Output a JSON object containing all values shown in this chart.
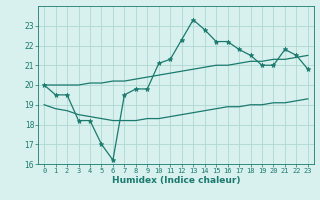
{
  "xlabel": "Humidex (Indice chaleur)",
  "x": [
    0,
    1,
    2,
    3,
    4,
    5,
    6,
    7,
    8,
    9,
    10,
    11,
    12,
    13,
    14,
    15,
    16,
    17,
    18,
    19,
    20,
    21,
    22,
    23
  ],
  "main_line": [
    20.0,
    19.5,
    19.5,
    18.2,
    18.2,
    17.0,
    16.2,
    19.5,
    19.8,
    19.8,
    21.1,
    21.3,
    22.3,
    23.3,
    22.8,
    22.2,
    22.2,
    21.8,
    21.5,
    21.0,
    21.0,
    21.8,
    21.5,
    20.8
  ],
  "upper_line": [
    20.0,
    20.0,
    20.0,
    20.0,
    20.1,
    20.1,
    20.2,
    20.2,
    20.3,
    20.4,
    20.5,
    20.6,
    20.7,
    20.8,
    20.9,
    21.0,
    21.0,
    21.1,
    21.2,
    21.2,
    21.3,
    21.3,
    21.4,
    21.5
  ],
  "lower_line": [
    19.0,
    18.8,
    18.7,
    18.5,
    18.4,
    18.3,
    18.2,
    18.2,
    18.2,
    18.3,
    18.3,
    18.4,
    18.5,
    18.6,
    18.7,
    18.8,
    18.9,
    18.9,
    19.0,
    19.0,
    19.1,
    19.1,
    19.2,
    19.3
  ],
  "ylim": [
    16,
    24
  ],
  "xlim": [
    -0.5,
    23.5
  ],
  "yticks": [
    16,
    17,
    18,
    19,
    20,
    21,
    22,
    23
  ],
  "xticks": [
    0,
    1,
    2,
    3,
    4,
    5,
    6,
    7,
    8,
    9,
    10,
    11,
    12,
    13,
    14,
    15,
    16,
    17,
    18,
    19,
    20,
    21,
    22,
    23
  ],
  "line_color": "#1a7a6e",
  "bg_color": "#d8f0ee",
  "grid_color": "#afd8d2"
}
